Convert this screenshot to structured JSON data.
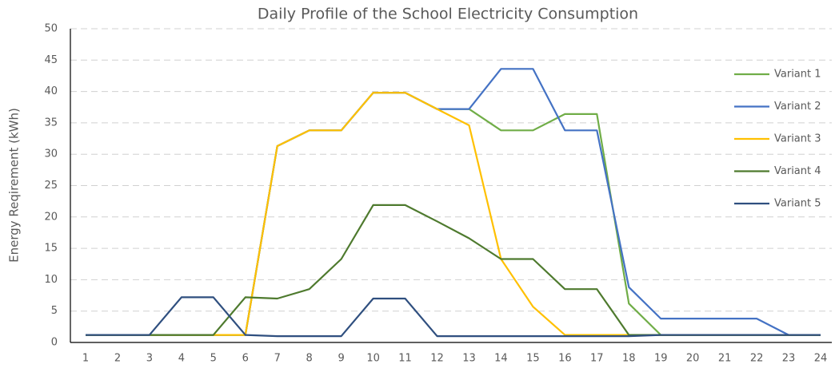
{
  "chart_data": {
    "type": "line",
    "title": "Daily Profile of the School Electricity Consumption",
    "y_label": "Energy Reqirement (kWh)",
    "categories": [
      "1",
      "2",
      "3",
      "4",
      "5",
      "6",
      "7",
      "8",
      "9",
      "10",
      "11",
      "12",
      "13",
      "14",
      "15",
      "16",
      "17",
      "18",
      "19",
      "20",
      "21",
      "22",
      "23",
      "24"
    ],
    "series": [
      {
        "name": "Variant 1",
        "color": "#70ad47",
        "values": [
          1.2,
          1.2,
          1.2,
          1.2,
          1.2,
          1.2,
          31.3,
          33.8,
          33.8,
          39.8,
          39.8,
          37.2,
          37.2,
          33.8,
          33.8,
          36.4,
          36.4,
          6.2,
          1.2,
          1.2,
          1.2,
          1.2,
          1.2,
          1.2
        ]
      },
      {
        "name": "Variant 2",
        "color": "#4472c4",
        "values": [
          1.2,
          1.2,
          1.2,
          1.2,
          1.2,
          1.2,
          31.3,
          33.8,
          33.8,
          39.8,
          39.8,
          37.2,
          37.2,
          43.6,
          43.6,
          33.8,
          33.8,
          8.8,
          3.8,
          3.8,
          3.8,
          3.8,
          1.2,
          1.2
        ]
      },
      {
        "name": "Variant 3",
        "color": "#ffc000",
        "values": [
          1.2,
          1.2,
          1.2,
          1.2,
          1.2,
          1.2,
          31.3,
          33.8,
          33.8,
          39.8,
          39.8,
          37.2,
          34.6,
          13.3,
          5.7,
          1.2,
          1.2,
          1.2,
          1.2,
          1.2,
          1.2,
          1.2,
          1.2,
          1.2
        ]
      },
      {
        "name": "Variant 4",
        "color": "#4e7a2e",
        "values": [
          1.2,
          1.2,
          1.2,
          1.2,
          1.2,
          7.2,
          7.0,
          8.5,
          13.3,
          21.9,
          21.9,
          19.3,
          16.6,
          13.3,
          13.3,
          8.5,
          8.5,
          1.2,
          1.2,
          1.2,
          1.2,
          1.2,
          1.2,
          1.2
        ]
      },
      {
        "name": "Variant 5",
        "color": "#2f4f7f",
        "values": [
          1.2,
          1.2,
          1.2,
          7.2,
          7.2,
          1.2,
          1.0,
          1.0,
          1.0,
          7.0,
          7.0,
          1.0,
          1.0,
          1.0,
          1.0,
          1.0,
          1.0,
          1.0,
          1.2,
          1.2,
          1.2,
          1.2,
          1.2,
          1.2
        ]
      }
    ],
    "ylim": [
      0,
      50
    ],
    "yticks": [
      0,
      5,
      10,
      15,
      20,
      25,
      30,
      35,
      40,
      45,
      50
    ],
    "grid": true,
    "legend": "right"
  }
}
